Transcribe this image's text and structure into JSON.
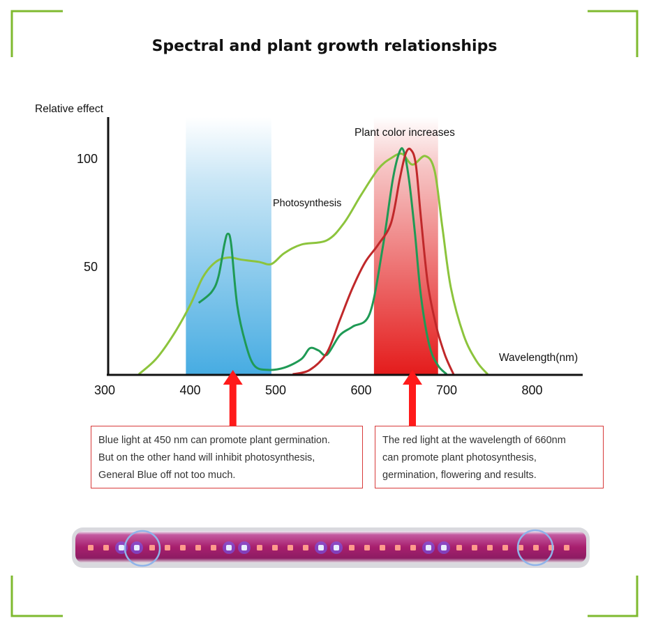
{
  "page": {
    "title": "Spectral and plant growth relationships",
    "accent_color": "#7fba2f"
  },
  "chart_data": {
    "type": "line",
    "title": "Spectral and plant growth relationships",
    "ylabel": "Relative effect",
    "xlabel": "Wavelength(nm)",
    "xlim": [
      300,
      850
    ],
    "ylim": [
      0,
      120
    ],
    "x_ticks": [
      300,
      400,
      500,
      600,
      700,
      800
    ],
    "y_ticks": [
      50,
      100
    ],
    "bands": [
      {
        "name": "blue-band",
        "from": 395,
        "to": 495,
        "color": "#4aaee3"
      },
      {
        "name": "red-band",
        "from": 615,
        "to": 690,
        "color": "#e52222"
      }
    ],
    "annotations": [
      {
        "label": "Photosynthesis",
        "x": 505,
        "y": 80
      },
      {
        "label": "Plant color increases",
        "x": 620,
        "y": 112
      }
    ],
    "arrows": [
      {
        "name": "arrow-blue",
        "x": 450
      },
      {
        "name": "arrow-red",
        "x": 660
      }
    ],
    "series": [
      {
        "name": "photosynthesis-curve",
        "color": "#8cc43c",
        "x": [
          340,
          360,
          380,
          400,
          415,
          430,
          445,
          460,
          480,
          495,
          510,
          530,
          560,
          580,
          600,
          620,
          635,
          648,
          660,
          675,
          686,
          695,
          705,
          720,
          735,
          748
        ],
        "y": [
          0,
          7,
          18,
          32,
          45,
          52,
          54,
          53,
          52,
          51,
          56,
          60,
          62,
          70,
          83,
          95,
          100,
          102,
          97,
          101,
          94,
          68,
          40,
          18,
          6,
          0
        ]
      },
      {
        "name": "chlorophyll-a-curve",
        "color": "#1f9a55",
        "x": [
          410,
          425,
          433,
          440,
          444,
          448,
          455,
          465,
          475,
          490,
          510,
          530,
          540,
          550,
          560,
          575,
          590,
          610,
          625,
          637,
          645,
          650,
          656,
          663,
          670,
          680,
          690,
          700
        ],
        "y": [
          33,
          38,
          45,
          60,
          65,
          60,
          32,
          14,
          4,
          2,
          3,
          7,
          12,
          11,
          9,
          18,
          22,
          28,
          58,
          90,
          103,
          103,
          90,
          65,
          36,
          13,
          4,
          0
        ]
      },
      {
        "name": "chlorophyll-b-curve",
        "color": "#c0282a",
        "x": [
          520,
          540,
          560,
          575,
          590,
          605,
          620,
          635,
          645,
          652,
          658,
          664,
          670,
          678,
          688,
          698,
          708
        ],
        "y": [
          0,
          2,
          10,
          25,
          40,
          52,
          60,
          70,
          90,
          102,
          104,
          97,
          72,
          42,
          22,
          9,
          0
        ]
      }
    ]
  },
  "callouts": {
    "left": {
      "lines": [
        "Blue light at 450 nm can promote plant germination.",
        "But on the other hand will inhibit photosynthesis,",
        "General Blue off not too much."
      ]
    },
    "right": {
      "lines": [
        "The red light at the wavelength of 660nm",
        "can promote plant photosynthesis,",
        "germination, flowering and results."
      ]
    }
  },
  "led_bar": {
    "pattern": [
      "red",
      "red",
      "blue",
      "blue",
      "red",
      "red",
      "red",
      "red",
      "red",
      "blue",
      "blue",
      "red",
      "red",
      "red",
      "red",
      "blue",
      "blue",
      "red",
      "red",
      "red",
      "red",
      "red",
      "blue",
      "blue",
      "red",
      "red",
      "red",
      "red",
      "red",
      "red",
      "red",
      "red"
    ],
    "red_color": "#ff9a8c",
    "blue_color": "#e8ecff"
  }
}
